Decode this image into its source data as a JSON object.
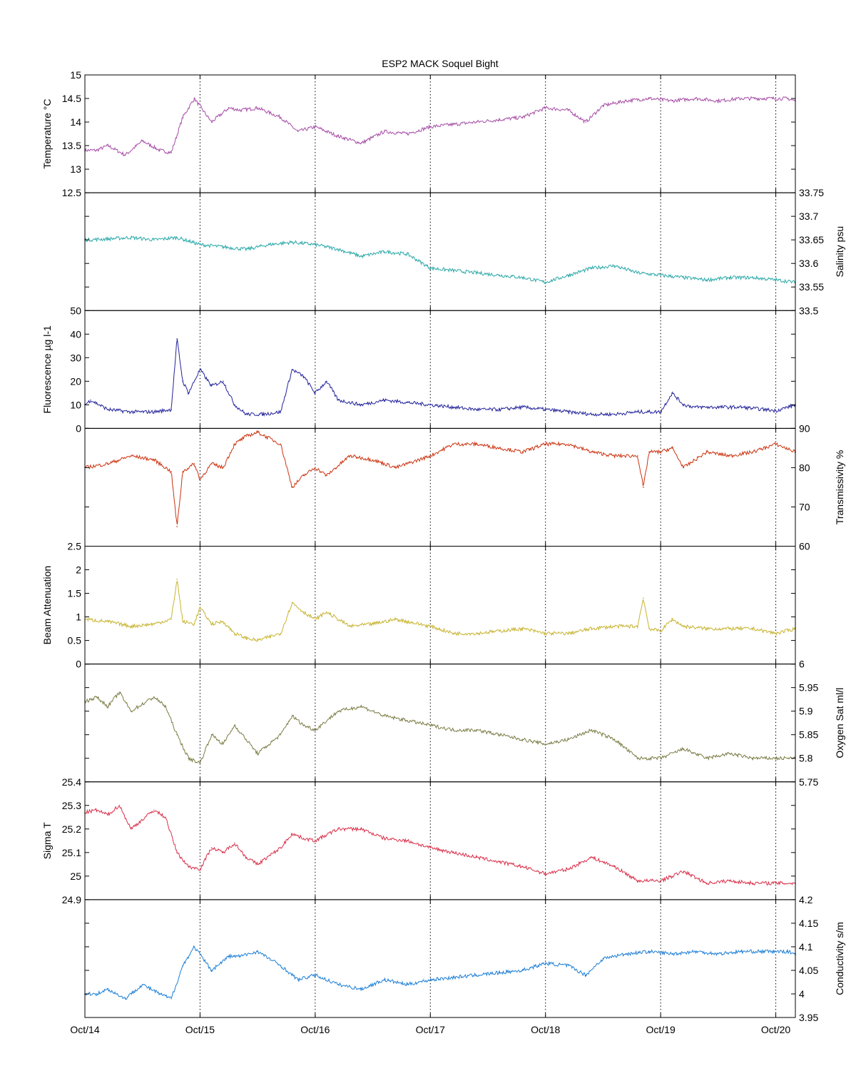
{
  "chart_data": {
    "type": "line",
    "title": "ESP2 MACK  Soquel Bight",
    "x": {
      "ticks": [
        "Oct/14",
        "Oct/15",
        "Oct/16",
        "Oct/17",
        "Oct/18",
        "Oct/19",
        "Oct/20"
      ],
      "range": [
        14.0,
        20.17
      ],
      "grid": "dotted vertical at each day"
    },
    "panels": [
      {
        "id": "temperature",
        "ylabel": "Temperature °C",
        "axis_side": "left",
        "color": "#a64ca6",
        "ylim": [
          12.5,
          15
        ],
        "yticks": [
          13,
          13.5,
          14,
          14.5,
          15
        ],
        "ytick_labels": [
          "13",
          "13.5",
          "14",
          "14.5",
          "15"
        ],
        "bottom_label": "12.5",
        "x": [
          14.0,
          14.1,
          14.2,
          14.35,
          14.5,
          14.65,
          14.75,
          14.85,
          14.95,
          15.1,
          15.25,
          15.35,
          15.5,
          15.7,
          15.85,
          16.0,
          16.2,
          16.4,
          16.6,
          16.8,
          17.0,
          17.2,
          17.4,
          17.6,
          17.8,
          18.0,
          18.2,
          18.35,
          18.5,
          18.7,
          18.9,
          19.1,
          19.3,
          19.5,
          19.7,
          19.9,
          20.1,
          20.17
        ],
        "y": [
          13.4,
          13.4,
          13.5,
          13.3,
          13.6,
          13.4,
          13.35,
          14.1,
          14.5,
          14.0,
          14.3,
          14.25,
          14.3,
          14.1,
          13.8,
          13.9,
          13.7,
          13.55,
          13.8,
          13.75,
          13.9,
          13.95,
          14.0,
          14.05,
          14.1,
          14.3,
          14.25,
          14.0,
          14.35,
          14.45,
          14.5,
          14.45,
          14.5,
          14.45,
          14.5,
          14.5,
          14.5,
          14.45
        ]
      },
      {
        "id": "salinity",
        "ylabel": "Salinity psu",
        "axis_side": "right",
        "color": "#2aa8a8",
        "ylim": [
          33.5,
          33.75
        ],
        "yticks": [
          33.55,
          33.6,
          33.65,
          33.7,
          33.75
        ],
        "ytick_labels": [
          "33.55",
          "33.6",
          "33.65",
          "33.7",
          "33.75"
        ],
        "bottom_label": "33.5",
        "x": [
          14.0,
          14.2,
          14.4,
          14.6,
          14.8,
          15.0,
          15.2,
          15.4,
          15.6,
          15.8,
          16.0,
          16.2,
          16.4,
          16.6,
          16.8,
          17.0,
          17.2,
          17.4,
          17.6,
          17.8,
          18.0,
          18.2,
          18.4,
          18.6,
          18.8,
          19.0,
          19.2,
          19.4,
          19.6,
          19.8,
          20.0,
          20.17
        ],
        "y": [
          33.65,
          33.652,
          33.655,
          33.65,
          33.655,
          33.64,
          33.635,
          33.63,
          33.64,
          33.645,
          33.64,
          33.63,
          33.615,
          33.625,
          33.62,
          33.59,
          33.585,
          33.58,
          33.575,
          33.57,
          33.56,
          33.575,
          33.59,
          33.595,
          33.58,
          33.575,
          33.57,
          33.565,
          33.57,
          33.57,
          33.565,
          33.56
        ]
      },
      {
        "id": "fluorescence",
        "ylabel": "Fluorescence µg l-1",
        "axis_side": "left",
        "color": "#23239a",
        "ylim": [
          0,
          50
        ],
        "yticks": [
          0,
          10,
          20,
          30,
          40,
          50
        ],
        "ytick_labels": [
          "0",
          "10",
          "20",
          "30",
          "40",
          ""
        ],
        "top_label": "50",
        "x": [
          14.0,
          14.05,
          14.2,
          14.4,
          14.6,
          14.75,
          14.8,
          14.85,
          14.9,
          15.0,
          15.1,
          15.2,
          15.3,
          15.4,
          15.55,
          15.7,
          15.8,
          15.9,
          16.0,
          16.1,
          16.2,
          16.4,
          16.6,
          16.8,
          17.0,
          17.2,
          17.4,
          17.6,
          17.8,
          18.0,
          18.2,
          18.4,
          18.6,
          18.8,
          19.0,
          19.1,
          19.2,
          19.3,
          19.5,
          19.7,
          19.9,
          20.0,
          20.17
        ],
        "y": [
          10,
          12,
          8,
          7,
          7,
          8,
          38,
          20,
          15,
          25,
          18,
          20,
          10,
          6,
          6,
          7,
          25,
          22,
          15,
          20,
          12,
          10,
          12,
          11,
          10,
          9,
          8,
          8,
          9,
          8,
          7,
          6,
          6,
          7,
          7,
          15,
          10,
          9,
          9,
          9,
          8,
          7.5,
          10
        ]
      },
      {
        "id": "transmissivity",
        "ylabel": "Transmissivity %",
        "axis_side": "right",
        "color": "#cc3311",
        "ylim": [
          60,
          90
        ],
        "yticks": [
          60,
          70,
          80,
          90
        ],
        "ytick_labels": [
          "60",
          "70",
          "80",
          "90"
        ],
        "x": [
          14.0,
          14.2,
          14.4,
          14.6,
          14.75,
          14.8,
          14.85,
          14.95,
          15.0,
          15.1,
          15.2,
          15.3,
          15.4,
          15.5,
          15.7,
          15.8,
          15.9,
          16.0,
          16.1,
          16.3,
          16.5,
          16.7,
          17.0,
          17.2,
          17.4,
          17.6,
          17.8,
          18.0,
          18.2,
          18.4,
          18.6,
          18.8,
          18.85,
          18.9,
          19.0,
          19.1,
          19.2,
          19.4,
          19.6,
          19.8,
          20.0,
          20.17
        ],
        "y": [
          80,
          81,
          83,
          82,
          79,
          65,
          79,
          81,
          77,
          81,
          80,
          86,
          88,
          89,
          86,
          75,
          78,
          80,
          78,
          83,
          82,
          80,
          83,
          86,
          86,
          85,
          84,
          86,
          86,
          84,
          83,
          83,
          75,
          84,
          84,
          85,
          80,
          84,
          83,
          84,
          86,
          84
        ]
      },
      {
        "id": "beam_attenuation",
        "ylabel": "Beam Attenuation",
        "axis_side": "left",
        "color": "#c8b432",
        "ylim": [
          0,
          2.5
        ],
        "yticks": [
          0,
          0.5,
          1,
          1.5,
          2,
          2.5
        ],
        "ytick_labels": [
          "0",
          "0.5",
          "1",
          "1.5",
          "2",
          ""
        ],
        "top_label": "2.5",
        "x": [
          14.0,
          14.2,
          14.4,
          14.6,
          14.75,
          14.8,
          14.85,
          14.95,
          15.0,
          15.1,
          15.2,
          15.3,
          15.4,
          15.5,
          15.7,
          15.8,
          15.9,
          16.0,
          16.1,
          16.3,
          16.5,
          16.7,
          17.0,
          17.2,
          17.4,
          17.6,
          17.8,
          18.0,
          18.2,
          18.4,
          18.6,
          18.8,
          18.85,
          18.9,
          19.0,
          19.1,
          19.2,
          19.4,
          19.6,
          19.8,
          20.0,
          20.17
        ],
        "y": [
          0.95,
          0.9,
          0.8,
          0.85,
          0.95,
          1.8,
          0.9,
          0.85,
          1.2,
          0.85,
          0.9,
          0.65,
          0.55,
          0.5,
          0.65,
          1.3,
          1.1,
          0.95,
          1.1,
          0.8,
          0.85,
          0.95,
          0.8,
          0.65,
          0.65,
          0.7,
          0.75,
          0.65,
          0.65,
          0.75,
          0.8,
          0.8,
          1.4,
          0.75,
          0.7,
          0.95,
          0.8,
          0.75,
          0.75,
          0.75,
          0.65,
          0.75
        ]
      },
      {
        "id": "oxygen",
        "ylabel": "Oxygen Sat ml/l",
        "axis_side": "right",
        "color": "#7c7c46",
        "ylim": [
          5.75,
          6
        ],
        "yticks": [
          5.8,
          5.85,
          5.9,
          5.95,
          6
        ],
        "ytick_labels": [
          "5.8",
          "5.85",
          "5.9",
          "5.95",
          "6"
        ],
        "bottom_label": "5.75",
        "x": [
          14.0,
          14.1,
          14.2,
          14.3,
          14.4,
          14.6,
          14.7,
          14.8,
          14.9,
          15.0,
          15.1,
          15.2,
          15.3,
          15.4,
          15.5,
          15.7,
          15.8,
          15.9,
          16.0,
          16.2,
          16.4,
          16.6,
          16.8,
          17.0,
          17.2,
          17.4,
          17.6,
          17.8,
          18.0,
          18.2,
          18.4,
          18.6,
          18.8,
          19.0,
          19.2,
          19.4,
          19.6,
          19.8,
          20.0,
          20.17
        ],
        "y": [
          5.92,
          5.93,
          5.91,
          5.94,
          5.9,
          5.93,
          5.91,
          5.85,
          5.8,
          5.79,
          5.85,
          5.83,
          5.87,
          5.84,
          5.81,
          5.85,
          5.89,
          5.87,
          5.86,
          5.9,
          5.91,
          5.89,
          5.88,
          5.87,
          5.86,
          5.86,
          5.85,
          5.84,
          5.83,
          5.84,
          5.86,
          5.84,
          5.8,
          5.8,
          5.82,
          5.8,
          5.81,
          5.8,
          5.8,
          5.8
        ]
      },
      {
        "id": "sigma_t",
        "ylabel": "Sigma T",
        "axis_side": "left",
        "color": "#d9304a",
        "ylim": [
          24.9,
          25.4
        ],
        "yticks": [
          25,
          25.1,
          25.2,
          25.3,
          25.4
        ],
        "ytick_labels": [
          "25",
          "25.1",
          "25.2",
          "25.3",
          "25.4"
        ],
        "bottom_label": "24.9",
        "x": [
          14.0,
          14.1,
          14.2,
          14.3,
          14.4,
          14.6,
          14.7,
          14.8,
          14.9,
          15.0,
          15.1,
          15.2,
          15.3,
          15.4,
          15.5,
          15.7,
          15.8,
          15.9,
          16.0,
          16.2,
          16.4,
          16.6,
          16.8,
          17.0,
          17.2,
          17.4,
          17.6,
          17.8,
          18.0,
          18.2,
          18.4,
          18.6,
          18.8,
          19.0,
          19.2,
          19.4,
          19.6,
          19.8,
          20.0,
          20.17
        ],
        "y": [
          25.27,
          25.28,
          25.26,
          25.3,
          25.2,
          25.28,
          25.25,
          25.1,
          25.04,
          25.03,
          25.12,
          25.1,
          25.14,
          25.08,
          25.05,
          25.12,
          25.18,
          25.16,
          25.15,
          25.2,
          25.2,
          25.16,
          25.15,
          25.12,
          25.1,
          25.08,
          25.06,
          25.04,
          25.01,
          25.03,
          25.08,
          25.04,
          24.98,
          24.98,
          25.02,
          24.97,
          24.98,
          24.97,
          24.97,
          24.97
        ]
      },
      {
        "id": "conductivity",
        "ylabel": "Conductivity s/m",
        "axis_side": "right",
        "color": "#1e7fd6",
        "ylim": [
          3.95,
          4.2
        ],
        "yticks": [
          3.95,
          4,
          4.05,
          4.1,
          4.15,
          4.2
        ],
        "ytick_labels": [
          "3.95",
          "4",
          "4.05",
          "4.1",
          "4.15",
          "4.2"
        ],
        "x": [
          14.0,
          14.1,
          14.2,
          14.35,
          14.5,
          14.65,
          14.75,
          14.85,
          14.95,
          15.1,
          15.25,
          15.35,
          15.5,
          15.7,
          15.85,
          16.0,
          16.2,
          16.4,
          16.6,
          16.8,
          17.0,
          17.2,
          17.4,
          17.6,
          17.8,
          18.0,
          18.2,
          18.35,
          18.5,
          18.7,
          18.9,
          19.1,
          19.3,
          19.5,
          19.7,
          19.9,
          20.1,
          20.17
        ],
        "y": [
          4.0,
          4.0,
          4.01,
          3.99,
          4.02,
          4.0,
          3.99,
          4.06,
          4.1,
          4.05,
          4.08,
          4.08,
          4.09,
          4.06,
          4.03,
          4.04,
          4.02,
          4.01,
          4.03,
          4.02,
          4.03,
          4.035,
          4.04,
          4.045,
          4.05,
          4.065,
          4.06,
          4.04,
          4.075,
          4.085,
          4.09,
          4.085,
          4.09,
          4.085,
          4.09,
          4.09,
          4.09,
          4.085
        ]
      }
    ]
  }
}
